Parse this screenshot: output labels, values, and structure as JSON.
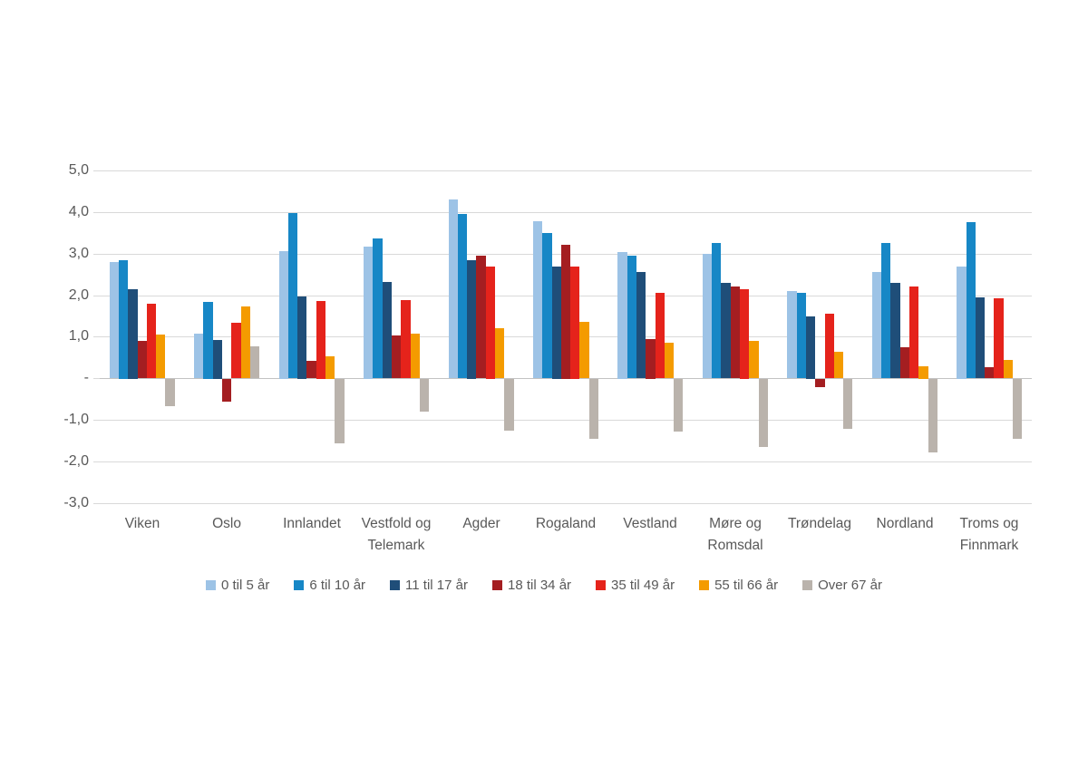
{
  "chart_data": {
    "type": "bar",
    "title": "",
    "categories": [
      "Viken",
      "Oslo",
      "Innlandet",
      "Vestfold og Telemark",
      "Agder",
      "Rogaland",
      "Vestland",
      "Møre og Romsdal",
      "Trøndelag",
      "Nordland",
      "Troms og Finnmark"
    ],
    "series": [
      {
        "name": "0 til 5 år",
        "color": "#9dc3e6",
        "values": [
          2.8,
          1.07,
          3.07,
          3.18,
          4.3,
          3.78,
          3.05,
          3.0,
          2.1,
          2.55,
          2.7
        ]
      },
      {
        "name": "6 til 10 år",
        "color": "#1787c6",
        "values": [
          2.85,
          1.85,
          3.97,
          3.37,
          3.95,
          3.5,
          2.95,
          3.25,
          2.05,
          3.25,
          3.75
        ]
      },
      {
        "name": "11 til 17 år",
        "color": "#1f4e79",
        "values": [
          2.15,
          0.93,
          1.98,
          2.32,
          2.85,
          2.7,
          2.55,
          2.3,
          1.5,
          2.3,
          1.95
        ]
      },
      {
        "name": "18 til 34 år",
        "color": "#a41e21",
        "values": [
          0.9,
          -0.55,
          0.42,
          1.03,
          2.95,
          3.22,
          0.95,
          2.2,
          -0.2,
          0.75,
          0.27
        ]
      },
      {
        "name": "35 til 49 år",
        "color": "#e5231b",
        "values": [
          1.8,
          1.33,
          1.87,
          1.88,
          2.7,
          2.7,
          2.05,
          2.15,
          1.55,
          2.2,
          1.92
        ]
      },
      {
        "name": "55 til 66 år",
        "color": "#f49b00",
        "values": [
          1.05,
          1.72,
          0.54,
          1.07,
          1.2,
          1.35,
          0.85,
          0.9,
          0.63,
          0.3,
          0.44
        ]
      },
      {
        "name": "Over 67 år",
        "color": "#bab3ac",
        "values": [
          -0.65,
          0.77,
          -1.55,
          -0.78,
          -1.25,
          -1.45,
          -1.27,
          -1.63,
          -1.2,
          -1.77,
          -1.45
        ]
      }
    ],
    "y_axis": {
      "min": -3.0,
      "max": 5.0,
      "step": 1.0,
      "tick_labels": [
        "5,0",
        "4,0",
        "3,0",
        "2,0",
        "1,0",
        "-",
        "-1,0",
        "-2,0",
        "-3,0"
      ]
    },
    "x_axis_label": "",
    "y_axis_label": "",
    "grid": true,
    "legend_position": "bottom"
  },
  "colors": {
    "background": "#ffffff",
    "gridline": "#d9d9d9",
    "zero_line": "#c2c2c2",
    "axis_text": "#595959"
  }
}
